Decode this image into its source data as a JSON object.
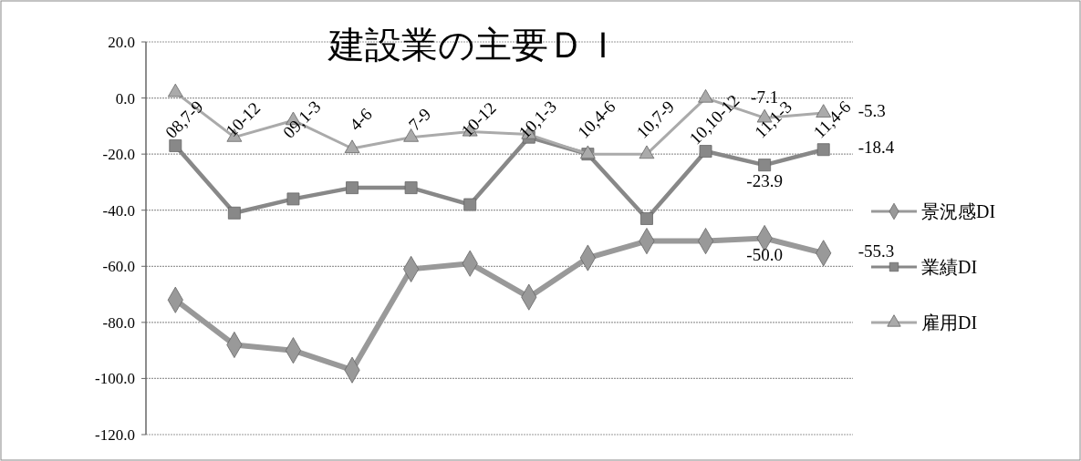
{
  "chart_data": {
    "type": "line",
    "title": "建設業の主要ＤＩ",
    "categories": [
      "08,7-9",
      "10-12",
      "09,1-3",
      "4-6",
      "7-9",
      "10-12",
      "10,1-3",
      "10,4-6",
      "10,7-9",
      "10,10-12",
      "11,1-3",
      "11,4-6"
    ],
    "series": [
      {
        "name": "景況感DI",
        "color": "#999999",
        "marker": "diamond",
        "values": [
          -72,
          -88,
          -90,
          -97,
          -61,
          -59,
          -71,
          -57,
          -51,
          -51,
          -50.0,
          -55.3
        ],
        "value_labels": [
          null,
          null,
          null,
          null,
          null,
          null,
          null,
          null,
          null,
          null,
          "-50.0",
          "-55.3"
        ]
      },
      {
        "name": "業績DI",
        "color": "#888888",
        "marker": "square",
        "values": [
          -17,
          -41,
          -36,
          -32,
          -32,
          -38,
          -14,
          -20,
          -43,
          -19,
          -23.9,
          -18.4
        ],
        "value_labels": [
          null,
          null,
          null,
          null,
          null,
          null,
          null,
          null,
          null,
          null,
          "-23.9",
          "-18.4"
        ]
      },
      {
        "name": "雇用DI",
        "color": "#aaaaaa",
        "marker": "triangle",
        "values": [
          2,
          -14,
          -8,
          -18,
          -14,
          -12,
          -13,
          -20,
          -20,
          0,
          -7.1,
          -5.3
        ],
        "value_labels": [
          null,
          null,
          null,
          null,
          null,
          null,
          null,
          null,
          null,
          null,
          "-7.1",
          "-5.3"
        ]
      }
    ],
    "ylim": [
      -120,
      20
    ],
    "yticks": [
      {
        "value": 20,
        "label": "20.0"
      },
      {
        "value": 0,
        "label": "0.0"
      },
      {
        "value": -20,
        "label": "-20.0"
      },
      {
        "value": -40,
        "label": "-40.0"
      },
      {
        "value": -60,
        "label": "-60.0"
      },
      {
        "value": -80,
        "label": "-80.0"
      },
      {
        "value": -100,
        "label": "-100.0"
      },
      {
        "value": -120,
        "label": "-120.0"
      }
    ],
    "grid": "y",
    "legend": "right"
  }
}
